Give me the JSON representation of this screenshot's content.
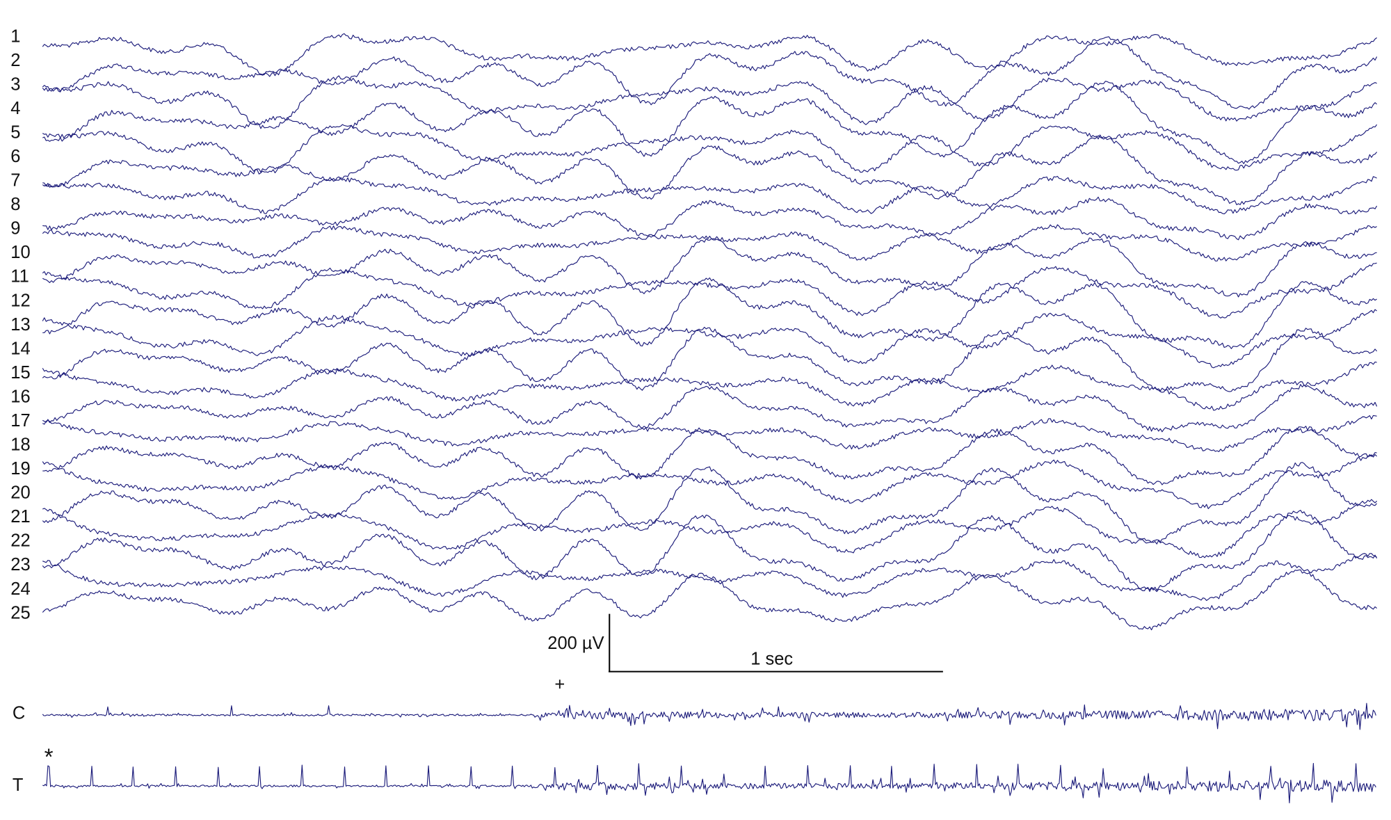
{
  "channels": [
    "1",
    "2",
    "3",
    "4",
    "5",
    "6",
    "7",
    "8",
    "9",
    "10",
    "11",
    "12",
    "13",
    "14",
    "15",
    "16",
    "17",
    "18",
    "19",
    "20",
    "21",
    "22",
    "23",
    "24",
    "25"
  ],
  "lower_channels": [
    "C",
    "T"
  ],
  "scale_bar": {
    "voltage": "200 µV",
    "time": "1 sec"
  },
  "markers": {
    "plus": "+",
    "star": "*"
  }
}
